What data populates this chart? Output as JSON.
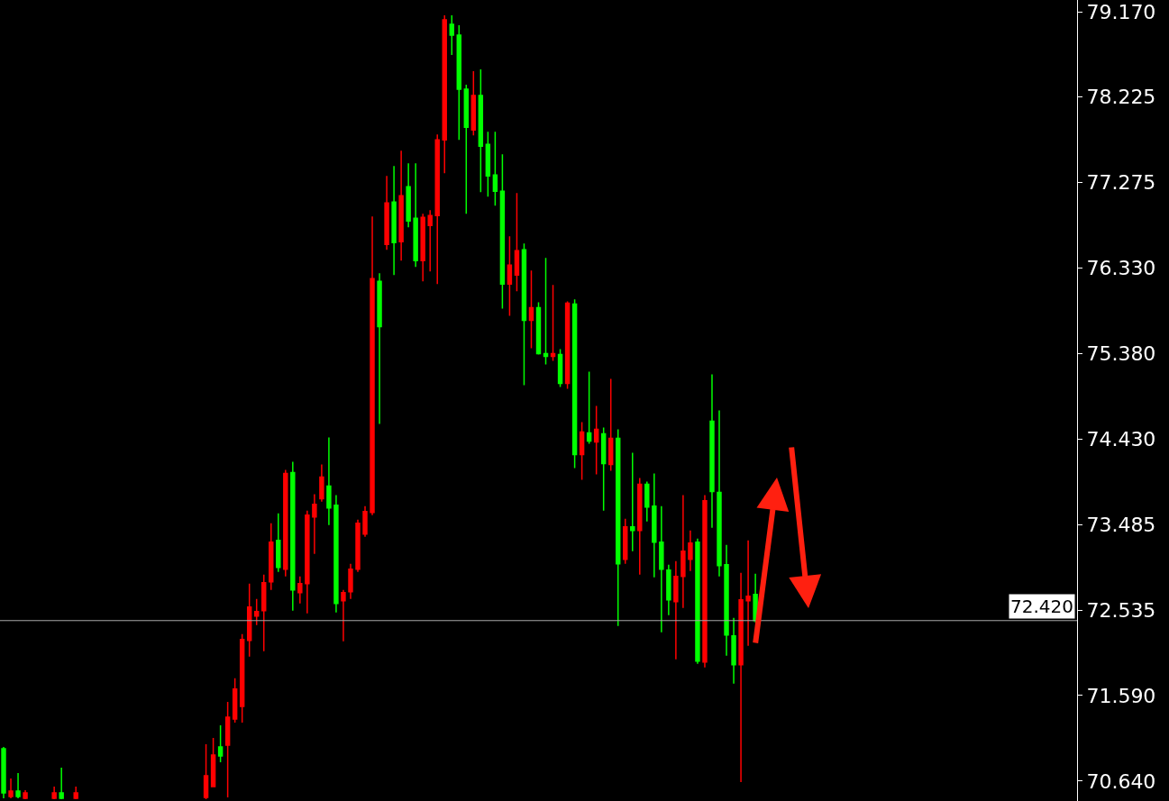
{
  "chart_data": {
    "type": "candlestick",
    "categories": [
      null,
      null,
      null,
      null,
      null,
      null,
      null,
      null,
      null,
      null,
      null,
      null,
      null,
      null,
      null,
      null,
      null,
      null,
      null,
      null,
      null,
      null,
      null,
      null,
      null,
      null,
      null,
      null,
      null,
      null,
      null,
      null,
      null,
      null,
      null,
      null,
      null,
      null,
      null,
      null,
      null,
      null,
      null,
      null,
      null,
      null,
      null,
      null,
      null,
      null,
      null,
      null,
      null,
      null,
      null,
      null,
      null,
      null,
      null,
      null,
      null,
      null,
      null,
      null,
      null,
      null,
      null,
      null,
      null,
      null,
      null,
      null,
      null,
      null,
      null,
      null,
      null,
      null,
      null,
      null,
      null,
      null,
      null,
      null,
      null,
      null,
      null,
      null,
      null,
      null,
      null,
      null,
      null,
      null,
      null,
      null,
      null,
      null,
      null,
      null,
      null,
      null,
      null,
      null,
      null,
      null,
      null,
      null,
      null,
      null,
      null,
      null,
      null,
      null,
      null,
      null,
      null,
      null,
      null,
      null,
      null,
      null,
      null,
      null,
      null,
      null,
      null,
      null,
      null,
      null,
      null,
      null,
      null,
      null,
      null,
      null,
      null,
      null,
      null,
      null,
      null,
      null,
      null,
      null,
      null,
      null,
      null,
      null,
      null
    ],
    "ohlc": [
      [
        71.0,
        71.02,
        70.45,
        70.51
      ],
      [
        70.47,
        70.67,
        70.45,
        70.53
      ],
      [
        70.53,
        70.73,
        70.45,
        70.47
      ],
      [
        70.45,
        70.54,
        70.44,
        70.51
      ],
      null,
      null,
      null,
      [
        70.45,
        70.58,
        70.44,
        70.51
      ],
      [
        70.51,
        70.79,
        70.44,
        70.45
      ],
      null,
      [
        70.45,
        70.58,
        70.44,
        70.51
      ],
      null,
      null,
      null,
      null,
      null,
      null,
      null,
      null,
      null,
      null,
      null,
      null,
      null,
      null,
      null,
      null,
      null,
      [
        70.46,
        71.05,
        70.44,
        70.7
      ],
      [
        70.58,
        71.12,
        70.58,
        70.93
      ],
      [
        71.02,
        71.26,
        70.85,
        70.92
      ],
      [
        71.04,
        71.52,
        70.46,
        71.35
      ],
      [
        71.33,
        71.78,
        71.29,
        71.66
      ],
      [
        71.47,
        72.27,
        71.29,
        72.21
      ],
      [
        72.2,
        72.83,
        72.02,
        72.57
      ],
      [
        72.47,
        72.66,
        72.37,
        72.52
      ],
      [
        72.53,
        72.93,
        72.08,
        72.84
      ],
      [
        72.85,
        73.5,
        72.76,
        73.29
      ],
      [
        73.31,
        73.61,
        72.96,
        73.01
      ],
      [
        72.99,
        74.09,
        72.91,
        74.05
      ],
      [
        74.06,
        74.18,
        72.53,
        72.76
      ],
      [
        72.73,
        72.91,
        72.61,
        72.83
      ],
      [
        72.83,
        73.64,
        72.5,
        73.59
      ],
      [
        73.57,
        73.82,
        73.16,
        73.71
      ],
      [
        73.77,
        74.15,
        73.74,
        74.01
      ],
      [
        73.91,
        74.45,
        73.48,
        73.67
      ],
      [
        73.7,
        73.81,
        72.51,
        72.61
      ],
      [
        72.64,
        72.76,
        72.19,
        72.73
      ],
      [
        72.74,
        73.05,
        72.66,
        72.99
      ],
      [
        72.99,
        73.54,
        72.96,
        73.5
      ],
      [
        73.38,
        73.69,
        73.35,
        73.63
      ],
      [
        73.62,
        76.9,
        73.59,
        76.21
      ],
      [
        76.18,
        76.27,
        74.6,
        75.68
      ],
      [
        76.59,
        77.35,
        76.53,
        77.05
      ],
      [
        77.06,
        77.46,
        76.25,
        76.61
      ],
      [
        76.62,
        77.63,
        76.41,
        77.13
      ],
      [
        77.23,
        77.49,
        76.78,
        76.85
      ],
      [
        76.88,
        77.49,
        76.34,
        76.41
      ],
      [
        76.41,
        76.93,
        76.18,
        76.89
      ],
      [
        76.8,
        76.97,
        76.29,
        76.91
      ],
      [
        76.91,
        77.81,
        76.15,
        77.75
      ],
      [
        77.75,
        79.13,
        77.38,
        79.08
      ],
      [
        79.03,
        79.13,
        78.69,
        78.91
      ],
      [
        78.91,
        79.02,
        77.75,
        78.31
      ],
      [
        78.31,
        78.36,
        76.93,
        77.89
      ],
      [
        77.86,
        78.51,
        77.8,
        78.24
      ],
      [
        78.24,
        78.53,
        77.17,
        77.68
      ],
      [
        77.7,
        77.84,
        77.12,
        77.35
      ],
      [
        77.36,
        77.84,
        77.02,
        77.18
      ],
      [
        77.18,
        77.59,
        75.88,
        76.15
      ],
      [
        76.15,
        76.68,
        75.8,
        76.36
      ],
      [
        76.25,
        77.16,
        76.07,
        76.52
      ],
      [
        76.53,
        76.6,
        75.03,
        75.75
      ],
      [
        75.75,
        76.3,
        75.44,
        75.89
      ],
      [
        75.89,
        75.95,
        75.37,
        75.38
      ],
      [
        75.38,
        76.44,
        75.26,
        75.35
      ],
      [
        75.35,
        76.14,
        75.3,
        75.38
      ],
      [
        75.37,
        75.43,
        75.01,
        75.05
      ],
      [
        75.05,
        75.96,
        74.99,
        75.94
      ],
      [
        75.93,
        75.98,
        74.11,
        74.26
      ],
      [
        74.26,
        74.62,
        73.98,
        74.51
      ],
      [
        74.5,
        75.18,
        74.38,
        74.41
      ],
      [
        74.4,
        74.8,
        74.04,
        74.54
      ],
      [
        74.49,
        74.56,
        73.64,
        74.16
      ],
      [
        74.15,
        75.1,
        74.08,
        74.44
      ],
      [
        74.44,
        74.54,
        72.36,
        73.05
      ],
      [
        73.1,
        73.55,
        73.05,
        73.46
      ],
      [
        73.46,
        74.28,
        73.19,
        73.42
      ],
      [
        73.42,
        74.0,
        72.93,
        73.93
      ],
      [
        73.93,
        73.96,
        73.52,
        73.68
      ],
      [
        73.69,
        74.05,
        72.9,
        73.29
      ],
      [
        73.29,
        73.69,
        72.29,
        72.99
      ],
      [
        72.98,
        73.04,
        72.48,
        72.65
      ],
      [
        72.63,
        73.08,
        71.99,
        72.91
      ],
      [
        72.91,
        73.81,
        72.56,
        73.19
      ],
      [
        73.1,
        73.42,
        72.97,
        73.28
      ],
      [
        73.29,
        73.33,
        71.94,
        71.97
      ],
      [
        71.96,
        73.81,
        71.9,
        73.75
      ],
      [
        74.63,
        75.15,
        73.45,
        73.85
      ],
      [
        73.84,
        74.75,
        72.91,
        73.03
      ],
      [
        73.04,
        73.26,
        72.03,
        72.26
      ],
      [
        72.25,
        72.45,
        71.72,
        71.93
      ],
      [
        71.93,
        72.95,
        70.63,
        72.65
      ],
      [
        72.64,
        73.31,
        72.14,
        72.69
      ],
      [
        72.71,
        72.94,
        72.4,
        72.42
      ],
      null,
      null,
      null,
      null,
      null,
      null,
      null,
      null,
      null,
      null,
      null,
      null,
      null,
      null,
      null,
      null,
      null,
      null,
      null,
      null,
      null,
      null,
      null,
      null,
      null,
      null,
      null,
      null,
      null,
      null,
      null,
      null,
      null,
      null,
      null,
      null,
      null,
      null,
      null,
      null,
      null,
      null,
      null,
      null
    ],
    "colors": [
      "#00ff00",
      "#ff0000",
      "#00ff00",
      "#ff0000",
      null,
      null,
      null,
      "#ff0000",
      "#00ff00",
      null,
      "#ff0000",
      null,
      null,
      null,
      null,
      null,
      null,
      null,
      null,
      null,
      null,
      null,
      null,
      null,
      null,
      null,
      null,
      null,
      "#ff0000",
      "#ff0000",
      "#00ff00",
      "#ff0000",
      "#ff0000",
      "#ff0000",
      "#ff0000",
      "#ff0000",
      "#ff0000",
      "#ff0000",
      "#00ff00",
      "#ff0000",
      "#00ff00",
      "#ff0000",
      "#ff0000",
      "#ff0000",
      "#ff0000",
      "#00ff00",
      "#00ff00",
      "#ff0000",
      "#ff0000",
      "#ff0000",
      "#ff0000",
      "#ff0000",
      "#00ff00",
      "#ff0000",
      "#00ff00",
      "#ff0000",
      "#00ff00",
      "#00ff00",
      "#ff0000",
      "#ff0000",
      "#ff0000",
      "#ff0000",
      "#00ff00",
      "#00ff00",
      "#00ff00",
      "#ff0000",
      "#00ff00",
      "#00ff00",
      "#00ff00",
      "#00ff00",
      "#ff0000",
      "#ff0000",
      "#00ff00",
      "#ff0000",
      "#00ff00",
      "#00ff00",
      "#ff0000",
      "#00ff00",
      "#ff0000",
      "#00ff00",
      "#ff0000",
      "#00ff00",
      "#ff0000",
      "#00ff00",
      "#ff0000",
      "#00ff00",
      "#ff0000",
      "#00ff00",
      "#ff0000",
      "#00ff00",
      "#00ff00",
      "#00ff00",
      "#00ff00",
      "#ff0000",
      "#ff0000",
      "#ff0000",
      "#00ff00",
      "#ff0000",
      "#00ff00",
      "#00ff00",
      "#00ff00",
      "#00ff00",
      "#ff0000",
      "#ff0000",
      "#00ff00",
      null,
      null,
      null,
      null,
      null,
      null,
      null,
      null,
      null,
      null,
      null,
      null,
      null,
      null,
      null,
      null,
      null,
      null,
      null,
      null,
      null,
      null,
      null,
      null,
      null,
      null,
      null,
      null,
      null,
      null,
      null,
      null,
      null,
      null,
      null,
      null,
      null,
      null,
      null,
      null,
      null,
      null,
      null,
      null
    ],
    "ylim": [
      70.42,
      79.3
    ],
    "yticks": [
      {
        "value": 70.64,
        "label": "70.640"
      },
      {
        "value": 71.59,
        "label": "71.590"
      },
      {
        "value": 72.535,
        "label": "72.535"
      },
      {
        "value": 73.485,
        "label": "73.485"
      },
      {
        "value": 74.43,
        "label": "74.430"
      },
      {
        "value": 75.38,
        "label": "75.380"
      },
      {
        "value": 76.33,
        "label": "76.330"
      },
      {
        "value": 77.275,
        "label": "77.275"
      },
      {
        "value": 78.225,
        "label": "78.225"
      },
      {
        "value": 79.17,
        "label": "79.170"
      }
    ],
    "ref_lines": [
      {
        "axis": "y",
        "value": 72.42,
        "label": "72.420",
        "color": "#a9a9a9"
      }
    ],
    "tick_labels": "y"
  }
}
